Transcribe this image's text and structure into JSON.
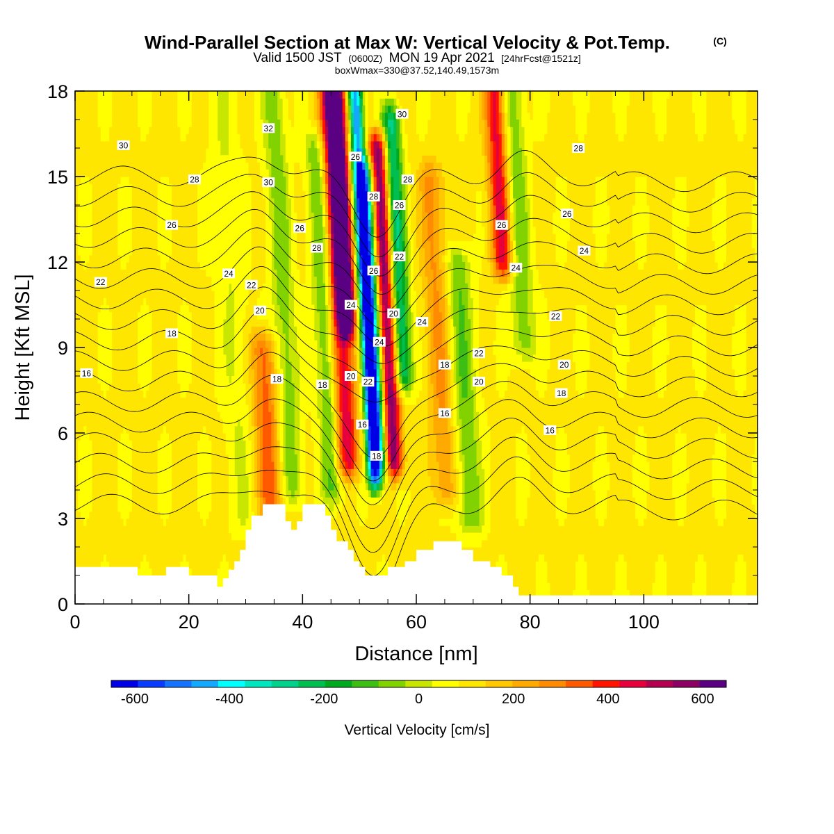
{
  "chart_data": {
    "type": "heatmap",
    "title": "Wind-Parallel Section at Max W: Vertical Velocity & Pot.Temp.",
    "title_mark": "(C)",
    "subtitle": {
      "valid": "Valid 1500 JST",
      "utc": "(0600Z)",
      "date": "MON 19 Apr 2021",
      "fcst": "[24hrFcst@1521z]"
    },
    "box_info": "boxWmax=330@37.52,140.49,1573m",
    "xlabel": "Distance [nm]",
    "ylabel": "Height [Kft MSL]",
    "xlim": [
      0,
      120
    ],
    "ylim": [
      0,
      18
    ],
    "x_ticks": [
      0,
      20,
      40,
      60,
      80,
      100
    ],
    "y_ticks": [
      0,
      3,
      6,
      9,
      12,
      15,
      18
    ],
    "colorbar": {
      "label": "Vertical Velocity [cm/s]",
      "range": [
        -650,
        650
      ],
      "step": 50,
      "tick_values": [
        -600,
        -400,
        -200,
        0,
        200,
        400,
        600
      ],
      "colors": [
        "#0000e6",
        "#0a3cff",
        "#1473ff",
        "#14a8ff",
        "#00ffff",
        "#00e6be",
        "#00d28c",
        "#00be50",
        "#00aa1e",
        "#3cbe14",
        "#82d200",
        "#c8e600",
        "#ffff00",
        "#ffe600",
        "#ffc800",
        "#ffaa00",
        "#ff8c00",
        "#ff5a00",
        "#ff1400",
        "#e6003c",
        "#b40050",
        "#8c0064",
        "#5a0082"
      ]
    },
    "velocity_field": {
      "background_cm_s": 10,
      "cores": [
        {
          "x": 51.5,
          "y_min": 4.5,
          "y_max": 18,
          "value": -520,
          "width_nm": 1.2
        },
        {
          "x": 52.5,
          "y_min": 5,
          "y_max": 15,
          "value": -420,
          "width_nm": 1.5
        },
        {
          "x": 48,
          "y_min": 10,
          "y_max": 18,
          "value": 520,
          "width_nm": 1.5
        },
        {
          "x": 47,
          "y_min": 5,
          "y_max": 18,
          "value": 330,
          "width_nm": 2.0
        },
        {
          "x": 55,
          "y_min": 5,
          "y_max": 16,
          "value": 450,
          "width_nm": 1.6
        },
        {
          "x": 57.5,
          "y_min": 8,
          "y_max": 17,
          "value": -330,
          "width_nm": 1.6
        },
        {
          "x": 44,
          "y_min": 4,
          "y_max": 16,
          "value": -170,
          "width_nm": 1.8
        },
        {
          "x": 37,
          "y_min": 4,
          "y_max": 18,
          "value": -140,
          "width_nm": 2.0
        },
        {
          "x": 33,
          "y_min": 3,
          "y_max": 9,
          "value": 220,
          "width_nm": 2.2
        },
        {
          "x": 64,
          "y_min": 4,
          "y_max": 15,
          "value": 150,
          "width_nm": 2.2
        },
        {
          "x": 68,
          "y_min": 3,
          "y_max": 12,
          "value": -160,
          "width_nm": 2.2
        },
        {
          "x": 76,
          "y_min": 12,
          "y_max": 18,
          "value": 320,
          "width_nm": 1.8
        },
        {
          "x": 79,
          "y_min": 9,
          "y_max": 18,
          "value": -150,
          "width_nm": 2.0
        },
        {
          "x": 28,
          "y_min": 3,
          "y_max": 18,
          "value": -60,
          "width_nm": 2.5
        }
      ]
    },
    "isentropes": {
      "levels": [
        16,
        17,
        18,
        19,
        20,
        21,
        22,
        23,
        24,
        25,
        26,
        27,
        28,
        29,
        30,
        31,
        32
      ]
    },
    "contour_labels": [
      {
        "x": 8.5,
        "y": 16.1,
        "text": "30"
      },
      {
        "x": 34,
        "y": 16.7,
        "text": "32"
      },
      {
        "x": 49.3,
        "y": 15.7,
        "text": "26"
      },
      {
        "x": 57.5,
        "y": 17.2,
        "text": "30"
      },
      {
        "x": 88.5,
        "y": 16.0,
        "text": "28"
      },
      {
        "x": 21,
        "y": 14.9,
        "text": "28"
      },
      {
        "x": 34,
        "y": 14.8,
        "text": "30"
      },
      {
        "x": 52.5,
        "y": 14.3,
        "text": "28"
      },
      {
        "x": 58.5,
        "y": 14.9,
        "text": "28"
      },
      {
        "x": 57,
        "y": 14.0,
        "text": "26"
      },
      {
        "x": 86.5,
        "y": 13.7,
        "text": "26"
      },
      {
        "x": 17,
        "y": 13.3,
        "text": "26"
      },
      {
        "x": 39.5,
        "y": 13.2,
        "text": "26"
      },
      {
        "x": 75,
        "y": 13.3,
        "text": "26"
      },
      {
        "x": 42.5,
        "y": 12.5,
        "text": "28"
      },
      {
        "x": 57,
        "y": 12.2,
        "text": "22"
      },
      {
        "x": 89.5,
        "y": 12.4,
        "text": "24"
      },
      {
        "x": 77.5,
        "y": 11.8,
        "text": "24"
      },
      {
        "x": 4.5,
        "y": 11.3,
        "text": "22"
      },
      {
        "x": 27,
        "y": 11.6,
        "text": "24"
      },
      {
        "x": 52.5,
        "y": 11.7,
        "text": "26"
      },
      {
        "x": 31,
        "y": 11.2,
        "text": "22"
      },
      {
        "x": 48.5,
        "y": 10.5,
        "text": "24"
      },
      {
        "x": 32.5,
        "y": 10.3,
        "text": "20"
      },
      {
        "x": 56,
        "y": 10.2,
        "text": "20"
      },
      {
        "x": 61,
        "y": 9.9,
        "text": "24"
      },
      {
        "x": 84.5,
        "y": 10.1,
        "text": "22"
      },
      {
        "x": 17,
        "y": 9.5,
        "text": "18"
      },
      {
        "x": 53.5,
        "y": 9.2,
        "text": "24"
      },
      {
        "x": 71,
        "y": 8.8,
        "text": "22"
      },
      {
        "x": 86,
        "y": 8.4,
        "text": "20"
      },
      {
        "x": 65,
        "y": 8.4,
        "text": "18"
      },
      {
        "x": 2,
        "y": 8.1,
        "text": "16"
      },
      {
        "x": 35.5,
        "y": 7.9,
        "text": "18"
      },
      {
        "x": 48.5,
        "y": 8.0,
        "text": "20"
      },
      {
        "x": 43.5,
        "y": 7.7,
        "text": "18"
      },
      {
        "x": 51.5,
        "y": 7.8,
        "text": "22"
      },
      {
        "x": 71,
        "y": 7.8,
        "text": "20"
      },
      {
        "x": 85.5,
        "y": 7.4,
        "text": "18"
      },
      {
        "x": 65,
        "y": 6.7,
        "text": "16"
      },
      {
        "x": 50.5,
        "y": 6.3,
        "text": "16"
      },
      {
        "x": 83.5,
        "y": 6.1,
        "text": "16"
      },
      {
        "x": 53,
        "y": 5.2,
        "text": "18"
      }
    ],
    "terrain": {
      "x": [
        0,
        10.5,
        11,
        15,
        16,
        19,
        20,
        24,
        25,
        26,
        27,
        28,
        29,
        30,
        31,
        32,
        33,
        36,
        37,
        38,
        39,
        40,
        43,
        44,
        45,
        46,
        47,
        48,
        49,
        50,
        51,
        53,
        55,
        56,
        58,
        59,
        60,
        62,
        63,
        66,
        68,
        69,
        70,
        72,
        73,
        74,
        75,
        76,
        77,
        78,
        80,
        120
      ],
      "height_kft": [
        1.3,
        1.3,
        1.0,
        1.0,
        1.3,
        1.3,
        1.0,
        1.0,
        0.6,
        0.9,
        1.2,
        1.5,
        1.9,
        2.6,
        3.1,
        3.1,
        3.5,
        3.5,
        2.9,
        2.6,
        2.9,
        3.5,
        3.5,
        3.1,
        2.6,
        2.2,
        2.2,
        1.9,
        1.5,
        1.3,
        1.0,
        1.0,
        1.3,
        1.3,
        1.5,
        1.5,
        1.9,
        1.9,
        2.2,
        2.2,
        1.9,
        1.9,
        1.5,
        1.5,
        1.3,
        1.3,
        1.0,
        1.0,
        0.6,
        0.3,
        0.3,
        0.3
      ]
    }
  }
}
